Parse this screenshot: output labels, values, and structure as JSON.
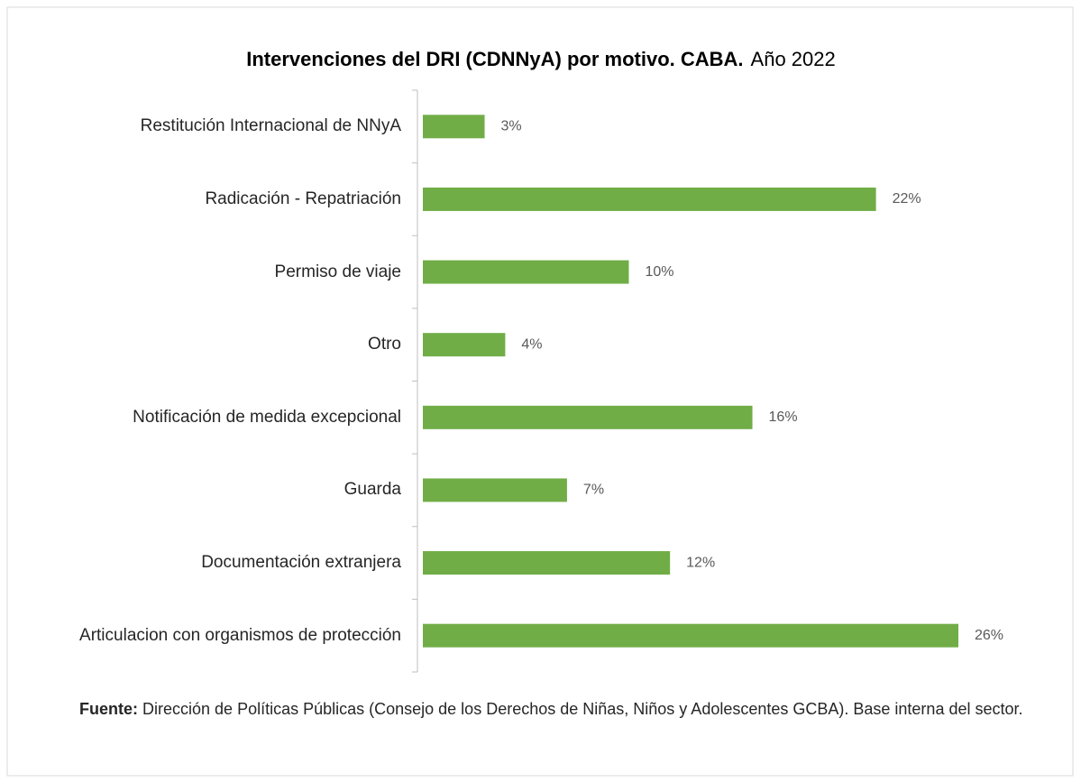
{
  "chart_data": {
    "type": "bar",
    "orientation": "horizontal",
    "title": "Intervenciones del DRI (CDNNyA) por motivo. CABA.",
    "subtitle": "Año 2022",
    "categories": [
      "Restitución Internacional de NNyA",
      "Radicación - Repatriación",
      "Permiso de viaje",
      "Otro",
      "Notificación de medida excepcional",
      "Guarda",
      "Documentación extranjera",
      "Articulacion con organismos de protección"
    ],
    "values": [
      3,
      22,
      10,
      4,
      16,
      7,
      12,
      26
    ],
    "value_labels": [
      "3%",
      "22%",
      "10%",
      "4%",
      "16%",
      "7%",
      "12%",
      "26%"
    ],
    "color": "#70ad47",
    "source_label": "Fuente:",
    "source": "Dirección de Políticas Públicas (Consejo de los Derechos de Niñas, Niños y Adolescentes GCBA). Base interna del sector."
  }
}
